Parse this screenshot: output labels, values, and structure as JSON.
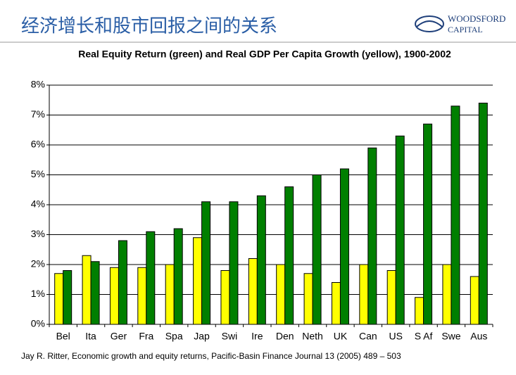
{
  "header": {
    "title": "经济增长和股市回报之间的关系",
    "logo_line1": "WOODSFORD",
    "logo_line2": "CAPITAL"
  },
  "chart_data": {
    "type": "bar",
    "title": "Real Equity Return (green) and Real GDP Per Capita Growth (yellow), 1900-2002",
    "categories": [
      "Bel",
      "Ita",
      "Ger",
      "Fra",
      "Spa",
      "Jap",
      "Swi",
      "Ire",
      "Den",
      "Neth",
      "UK",
      "Can",
      "US",
      "S Af",
      "Swe",
      "Aus"
    ],
    "series": [
      {
        "color": "#ffff00",
        "values": [
          1.7,
          2.3,
          1.9,
          1.9,
          2.0,
          2.9,
          1.8,
          2.2,
          2.0,
          1.7,
          1.4,
          2.0,
          1.8,
          0.9,
          2.0,
          1.6
        ]
      },
      {
        "color": "#007f00",
        "values": [
          1.8,
          2.1,
          2.8,
          3.1,
          3.2,
          4.1,
          4.1,
          4.3,
          4.6,
          5.0,
          5.2,
          5.9,
          6.3,
          6.7,
          7.3,
          7.4
        ]
      }
    ],
    "ylim": [
      0,
      8
    ],
    "yticks": [
      {
        "value": 0,
        "label": "0%"
      },
      {
        "value": 1,
        "label": "1%"
      },
      {
        "value": 2,
        "label": "2%"
      },
      {
        "value": 3,
        "label": "3%"
      },
      {
        "value": 4,
        "label": "4%"
      },
      {
        "value": 5,
        "label": "5%"
      },
      {
        "value": 6,
        "label": "6%"
      },
      {
        "value": 7,
        "label": "7%"
      },
      {
        "value": 8,
        "label": "8%"
      }
    ],
    "grid": true
  },
  "footnote": "Jay R. Ritter, Economic growth and equity returns, Pacific-Basin Finance Journal 13 (2005) 489 – 503"
}
